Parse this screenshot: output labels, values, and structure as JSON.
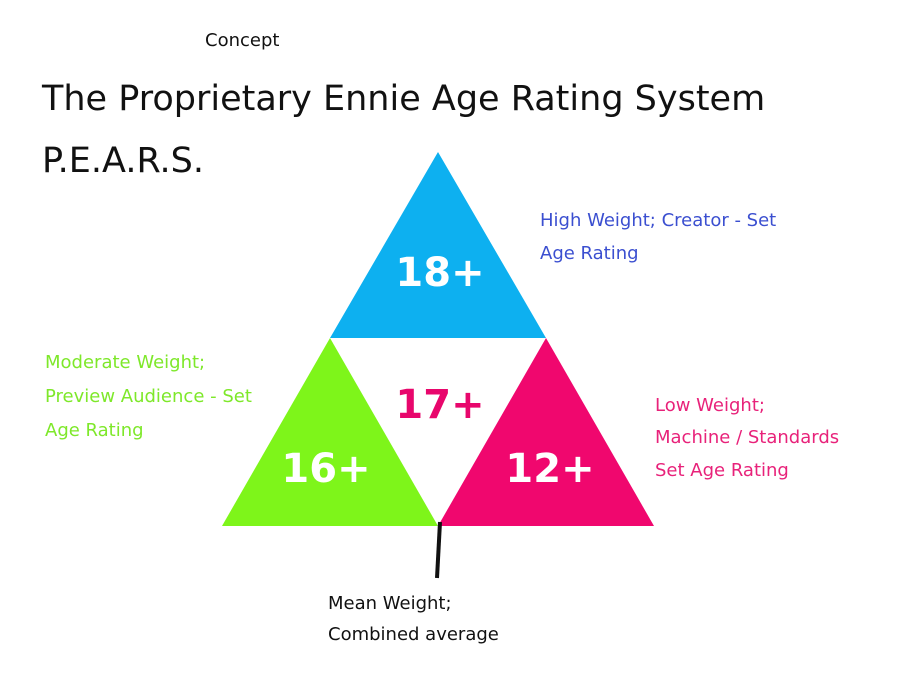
{
  "header": {
    "note": "Concept",
    "title_lines": [
      "The Proprietary Ennie Age Rating System",
      "P.E.A.R.S."
    ]
  },
  "triangles": [
    {
      "label": "18+"
    },
    {
      "label": "17+"
    },
    {
      "label": "16+"
    },
    {
      "label": "12+"
    }
  ],
  "annotations": [
    {
      "lines": [
        "High Weight; Creator - Set",
        "Age Rating"
      ]
    },
    {
      "lines": [
        "Moderate Weight;",
        "Preview Audience - Set",
        "Age Rating"
      ]
    },
    {
      "lines": [
        "Low Weight;",
        "Machine / Standards",
        "Set Age Rating"
      ]
    },
    {
      "lines": [
        "Mean Weight;",
        "Combined average"
      ]
    }
  ]
}
